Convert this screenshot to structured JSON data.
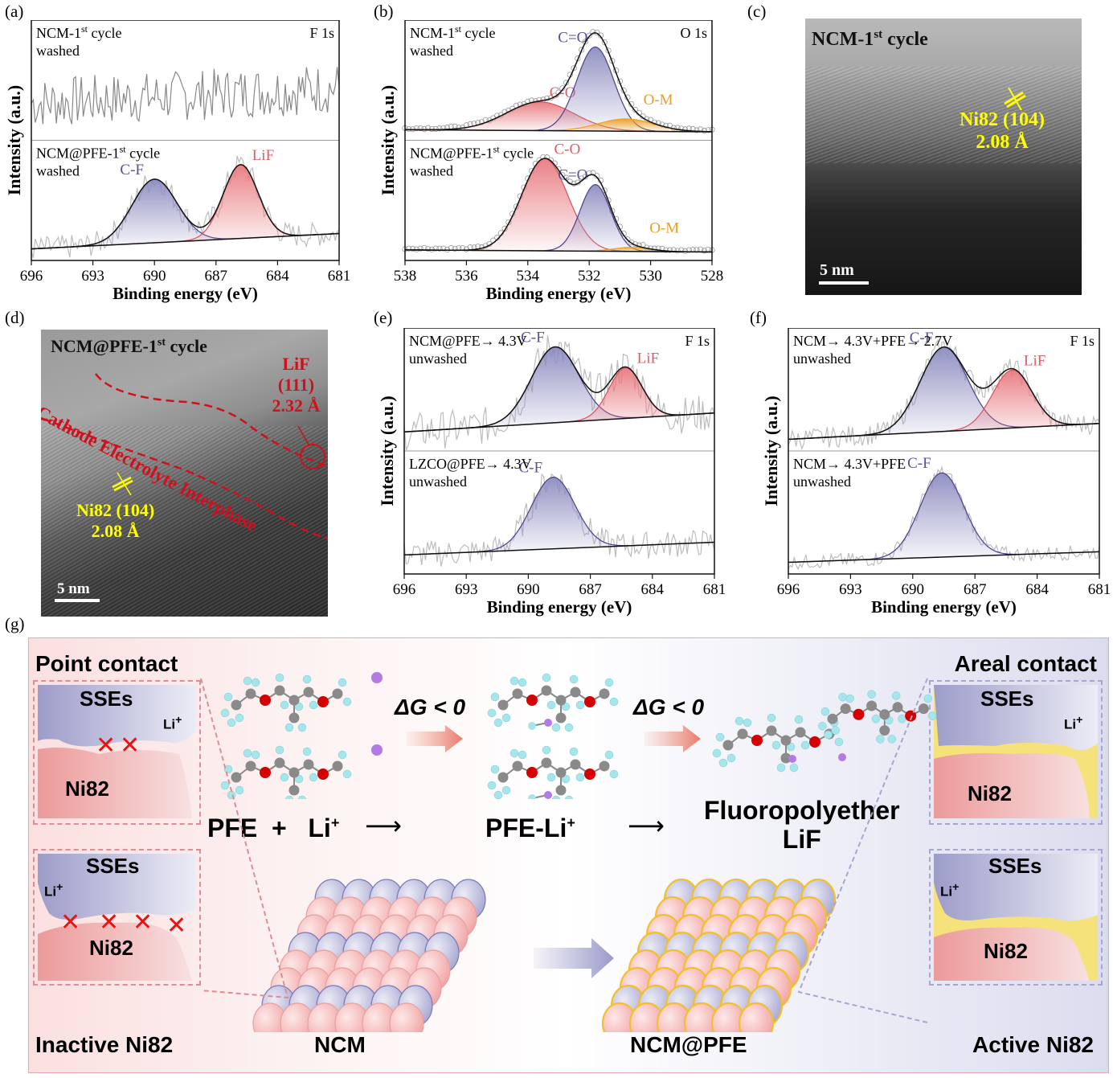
{
  "panels": {
    "a": {
      "label": "(a)"
    },
    "b": {
      "label": "(b)"
    },
    "c": {
      "label": "(c)"
    },
    "d": {
      "label": "(d)"
    },
    "e": {
      "label": "(e)"
    },
    "f": {
      "label": "(f)"
    },
    "g": {
      "label": "(g)"
    }
  },
  "colors": {
    "cf_fill": "#8c8cc0",
    "cf_line": "#4a3f8a",
    "lif_fill": "#e87a80",
    "lif_line": "#d9505a",
    "om_fill": "#f0a020",
    "raw": "#b0b0b0",
    "tem_yellow": "#ffff00",
    "tem_red": "#d0101c",
    "label_cf": "#5a5096",
    "label_lif": "#d9606a",
    "label_om": "#e8a020"
  },
  "chart_data": [
    {
      "id": "a",
      "type": "line",
      "title": "F 1s",
      "xlabel": "Binding energy (eV)",
      "ylabel": "Intensity (a.u.)",
      "xlim": [
        696,
        681
      ],
      "xticks": [
        696,
        693,
        690,
        687,
        684,
        681
      ],
      "subpanels": [
        {
          "sample": "NCM-1st cycle",
          "sample_main": "NCM-1",
          "sample_sup": "st",
          "sample_tail": " cycle",
          "treatment": "washed",
          "peaks": [],
          "noise_level": 0.25,
          "raw_baseline": [
            0.55,
            0.7
          ]
        },
        {
          "sample": "NCM@PFE-1st cycle",
          "sample_main": "NCM@PFE-1",
          "sample_sup": "st",
          "sample_tail": " cycle",
          "treatment": "washed",
          "baseline": [
            0.05,
            0.2
          ],
          "peaks": [
            {
              "name": "C-F",
              "center": 690.0,
              "height": 0.62,
              "width": 1.1,
              "kind": "cf"
            },
            {
              "name": "LiF",
              "center": 685.8,
              "height": 0.72,
              "width": 0.85,
              "kind": "lif"
            }
          ],
          "noise_level": 0.12
        }
      ]
    },
    {
      "id": "b",
      "type": "line",
      "title": "O 1s",
      "xlabel": "Binding energy (eV)",
      "ylabel": "Intensity (a.u.)",
      "xlim": [
        538,
        528
      ],
      "xticks": [
        538,
        536,
        534,
        532,
        530,
        528
      ],
      "subpanels": [
        {
          "sample": "NCM-1st cycle",
          "sample_main": "NCM-1",
          "sample_sup": "st",
          "sample_tail": " cycle",
          "treatment": "washed",
          "baseline": [
            0.04,
            0.02
          ],
          "peaks": [
            {
              "name": "C-O",
              "center": 533.6,
              "height": 0.28,
              "width": 1.1,
              "kind": "lif"
            },
            {
              "name": "C=O",
              "center": 531.8,
              "height": 0.82,
              "width": 0.6,
              "kind": "cf"
            },
            {
              "name": "O-M",
              "center": 530.8,
              "height": 0.12,
              "width": 0.9,
              "kind": "om"
            }
          ],
          "circles": true
        },
        {
          "sample": "NCM@PFE-1st cycle",
          "sample_main": "NCM@PFE-1",
          "sample_sup": "st",
          "sample_tail": " cycle",
          "treatment": "washed",
          "baseline": [
            0.04,
            0.02
          ],
          "peaks": [
            {
              "name": "C-O",
              "center": 533.45,
              "height": 0.9,
              "width": 0.75,
              "kind": "lif"
            },
            {
              "name": "C=O",
              "center": 531.8,
              "height": 0.65,
              "width": 0.5,
              "kind": "cf"
            },
            {
              "name": "O-M",
              "center": 530.6,
              "height": 0.04,
              "width": 0.6,
              "kind": "om"
            }
          ],
          "circles": true
        }
      ]
    },
    {
      "id": "e",
      "type": "line",
      "title": "F 1s",
      "xlabel": "Binding energy (eV)",
      "ylabel": "Intensity (a.u.)",
      "xlim": [
        696,
        681
      ],
      "xticks": [
        696,
        693,
        690,
        687,
        684,
        681
      ],
      "subpanels": [
        {
          "sample": "NCM@PFE→ 4.3V",
          "treatment": "unwashed",
          "baseline": [
            0.12,
            0.3
          ],
          "peaks": [
            {
              "name": "C-F",
              "center": 688.7,
              "height": 0.72,
              "width": 1.15,
              "kind": "cf"
            },
            {
              "name": "LiF",
              "center": 685.3,
              "height": 0.48,
              "width": 0.8,
              "kind": "lif"
            }
          ],
          "noise_level": 0.18
        },
        {
          "sample": "LZCO@PFE→ 4.3V",
          "treatment": "unwashed",
          "baseline": [
            0.12,
            0.24
          ],
          "peaks": [
            {
              "name": "C-F",
              "center": 688.8,
              "height": 0.68,
              "width": 1.05,
              "kind": "cf"
            }
          ],
          "noise_level": 0.13
        }
      ]
    },
    {
      "id": "f",
      "type": "line",
      "title": "F 1s",
      "xlabel": "Binding energy (eV)",
      "ylabel": "Intensity (a.u.)",
      "xlim": [
        696,
        681
      ],
      "xticks": [
        696,
        693,
        690,
        687,
        684,
        681
      ],
      "subpanels": [
        {
          "sample": "NCM→ 4.3V+PFE→ 2.7V",
          "treatment": "unwashed",
          "baseline": [
            0.05,
            0.2
          ],
          "peaks": [
            {
              "name": "C-F",
              "center": 688.5,
              "height": 0.8,
              "width": 1.15,
              "kind": "cf"
            },
            {
              "name": "LiF",
              "center": 685.2,
              "height": 0.55,
              "width": 0.95,
              "kind": "lif"
            }
          ],
          "noise_level": 0.1
        },
        {
          "sample": "NCM→ 4.3V+PFE",
          "treatment": "unwashed",
          "baseline": [
            0.05,
            0.15
          ],
          "peaks": [
            {
              "name": "C-F",
              "center": 688.6,
              "height": 0.8,
              "width": 1.05,
              "kind": "cf"
            }
          ],
          "noise_level": 0.07
        }
      ]
    }
  ],
  "tem": {
    "c": {
      "title_main": "NCM-1",
      "title_sup": "st",
      "title_tail": " cycle",
      "plane": "Ni82 (104)",
      "spacing": "2.08 Å",
      "scalebar": "5 nm"
    },
    "d": {
      "title_main": "NCM@PFE-1",
      "title_sup": "st",
      "title_tail": " cycle",
      "lif_plane": "LiF (111)",
      "lif_spacing": "2.32 Å",
      "cei": "Cathode Electrolyte Interphase",
      "plane": "Ni82 (104)",
      "spacing": "2.08 Å",
      "scalebar": "5 nm"
    }
  },
  "scheme": {
    "left_title": "Point contact",
    "right_title": "Areal contact",
    "left_bottom": "Inactive Ni82",
    "right_bottom": "Active Ni82",
    "sse": "SSEs",
    "ni82": "Ni82",
    "li_plus": "Li",
    "plus": "+",
    "delta_g": "ΔG < 0",
    "reaction": {
      "pfe": "PFE",
      "plus_sign": "+",
      "li": "Li",
      "li_sup": "+",
      "pfe_li": "PFE-Li",
      "pfe_li_sup": "+",
      "product1": "Fluoropolyether",
      "product2": "LiF"
    },
    "ncm": "NCM",
    "ncm_pfe": "NCM@PFE"
  }
}
